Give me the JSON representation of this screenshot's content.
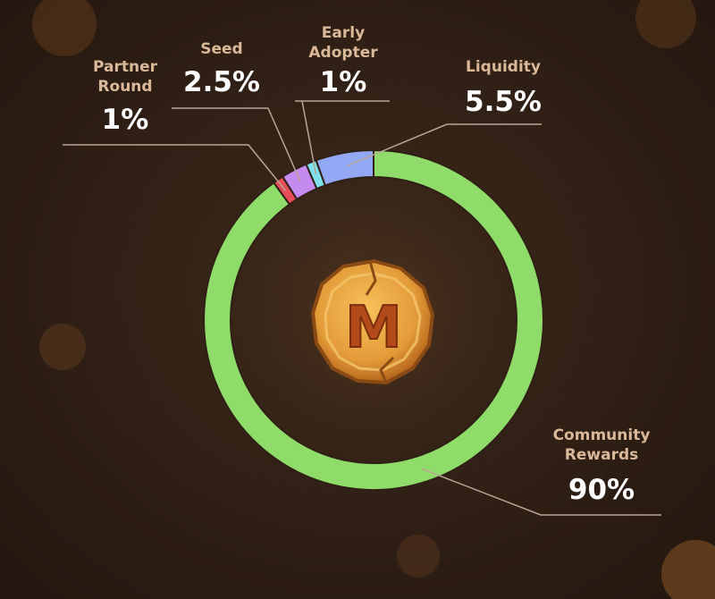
{
  "chart_data": {
    "type": "pie",
    "style": "donut",
    "segments": [
      {
        "name": "Community\nRewards",
        "value": 90,
        "label": "90%",
        "color": "#8fdc6b"
      },
      {
        "name": "Partner\nRound",
        "value": 1,
        "label": "1%",
        "color": "#e64d57"
      },
      {
        "name": "Seed",
        "value": 2.5,
        "label": "2.5%",
        "color": "#c58af0"
      },
      {
        "name": "Early\nAdopter",
        "value": 1,
        "label": "1%",
        "color": "#7ee0ea"
      },
      {
        "name": "Liquidity",
        "value": 5.5,
        "label": "5.5%",
        "color": "#93a8f5"
      }
    ],
    "center_logo": "M",
    "colors": {
      "leader_line": "#b9a594",
      "background": "#2f1f15",
      "coin": "#e39b38"
    }
  }
}
